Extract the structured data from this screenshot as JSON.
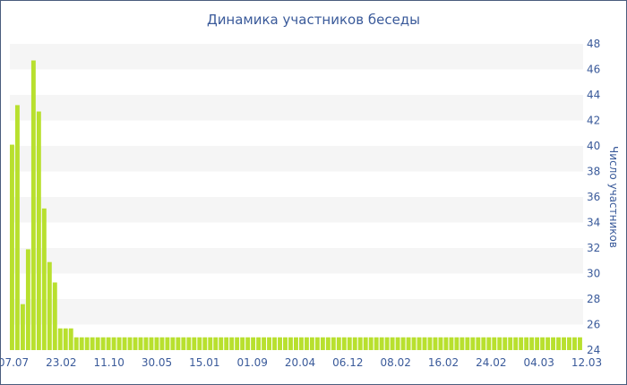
{
  "chart_data": {
    "type": "bar",
    "title": "Динамика участников беседы",
    "xlabel": "",
    "ylabel": "Число участников",
    "ylim": [
      24,
      48
    ],
    "y_ticks": [
      24,
      26,
      28,
      30,
      32,
      34,
      36,
      38,
      40,
      42,
      44,
      46,
      48
    ],
    "y_axis_side": "right",
    "x_tick_labels": [
      "07.07",
      "23.02",
      "11.10",
      "30.05",
      "15.01",
      "01.09",
      "20.04",
      "06.12",
      "08.02",
      "16.02",
      "24.02",
      "04.03",
      "12.03"
    ],
    "grid": "horizontal alternating bands",
    "legend": "none",
    "bar_color": "#b8e02e",
    "values": [
      40.1,
      43.2,
      27.6,
      31.9,
      46.7,
      42.7,
      35.1,
      30.9,
      29.3,
      25.7,
      25.7,
      25.7,
      25,
      25,
      25,
      25,
      25,
      25,
      25,
      25,
      25,
      25,
      25,
      25,
      25,
      25,
      25,
      25,
      25,
      25,
      25,
      25,
      25,
      25,
      25,
      25,
      25,
      25,
      25,
      25,
      25,
      25,
      25,
      25,
      25,
      25,
      25,
      25,
      25,
      25,
      25,
      25,
      25,
      25,
      25,
      25,
      25,
      25,
      25,
      25,
      25,
      25,
      25,
      25,
      25,
      25,
      25,
      25,
      25,
      25,
      25,
      25,
      25,
      25,
      25,
      25,
      25,
      25,
      25,
      25,
      25,
      25,
      25,
      25,
      25,
      25,
      25,
      25,
      25,
      25,
      25,
      25,
      25,
      25,
      25,
      25,
      25,
      25,
      25,
      25,
      25,
      25,
      25,
      25,
      25,
      25,
      25
    ]
  }
}
